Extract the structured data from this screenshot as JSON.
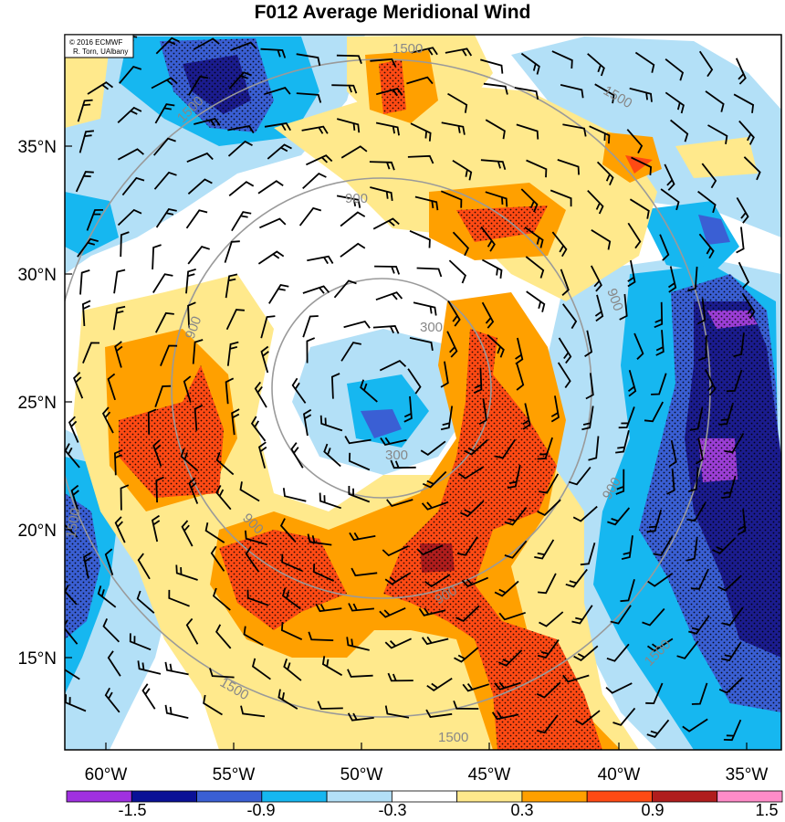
{
  "title": "F012 Average Meridional Wind",
  "credit": {
    "line1": "© 2016 ECMWF",
    "line2": "R. Torn, UAlbany"
  },
  "map": {
    "lon_labels": [
      "60°W",
      "55°W",
      "50°W",
      "45°W",
      "40°W",
      "35°W"
    ],
    "lat_labels": [
      "35°N",
      "30°N",
      "25°N",
      "20°N",
      "15°N"
    ],
    "range_rings": [
      "300",
      "900",
      "1500"
    ],
    "colors": {
      "strong_positive": "#ff4a14",
      "moderate_positive": "#ffa000",
      "weak_positive": "#ffe98c",
      "weak_negative": "#b3e0f7",
      "moderate_negative": "#16b7f0",
      "strong_negative": "#3a5fd4",
      "extreme_negative": "#1b1c8f",
      "purple": "#9b3ed6",
      "dark_red": "#b01d1d"
    }
  },
  "colorbar": {
    "labels": [
      "-1.5",
      "-0.9",
      "-0.3",
      "0.3",
      "0.9",
      "1.5"
    ],
    "colors": [
      "#a030e0",
      "#0a1196",
      "#3a5fd4",
      "#16b7f0",
      "#b3e0f7",
      "#ffffff",
      "#ffe98c",
      "#ffa000",
      "#ff4a14",
      "#b01d1d",
      "#ff8cc8"
    ]
  }
}
